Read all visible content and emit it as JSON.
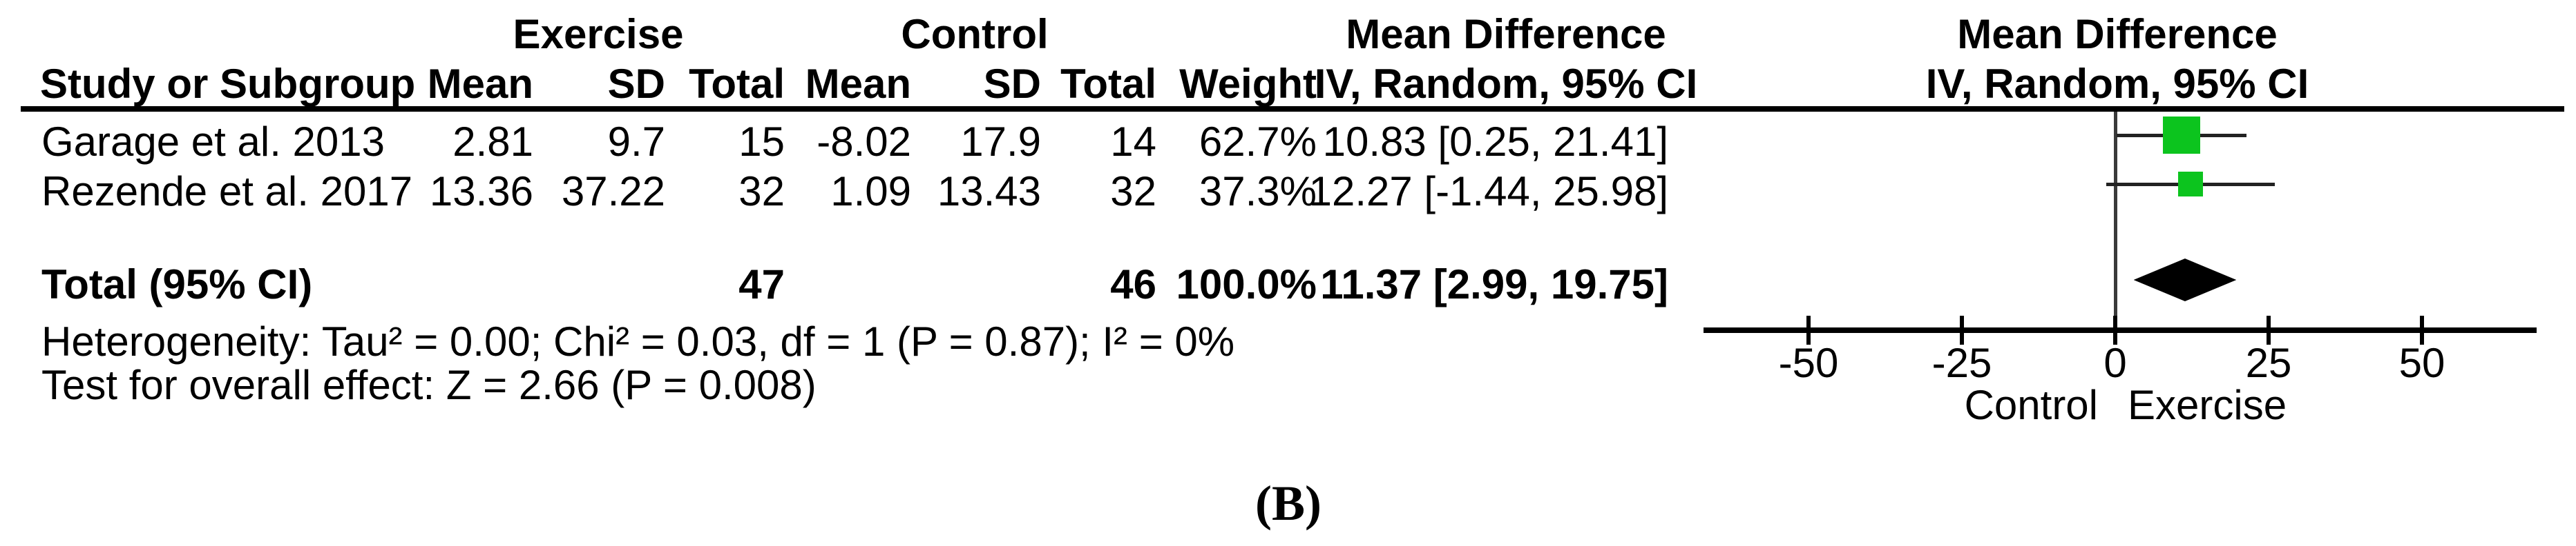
{
  "figure_label": "(B)",
  "table": {
    "group_headers": {
      "exercise": "Exercise",
      "control": "Control",
      "mean_difference_left": "Mean Difference",
      "mean_difference_right": "Mean Difference"
    },
    "column_headers": {
      "study": "Study or Subgroup",
      "mean_exercise": "Mean",
      "sd_exercise": "SD",
      "total_exercise": "Total",
      "mean_control": "Mean",
      "sd_control": "SD",
      "total_control": "Total",
      "weight": "Weight",
      "iv_left": "IV, Random, 95% CI",
      "iv_right": "IV, Random, 95% CI"
    },
    "rows": [
      {
        "study": "Garage et al. 2013",
        "mean_e": "2.81",
        "sd_e": "9.7",
        "total_e": "15",
        "mean_c": "-8.02",
        "sd_c": "17.9",
        "total_c": "14",
        "weight": "62.7%",
        "ci": "10.83 [0.25, 21.41]"
      },
      {
        "study": "Rezende et al. 2017",
        "mean_e": "13.36",
        "sd_e": "37.22",
        "total_e": "32",
        "mean_c": "1.09",
        "sd_c": "13.43",
        "total_c": "32",
        "weight": "37.3%",
        "ci": "12.27 [-1.44, 25.98]"
      }
    ],
    "total_row": {
      "label": "Total (95% CI)",
      "total_e": "47",
      "total_c": "46",
      "weight": "100.0%",
      "ci": "11.37 [2.99, 19.75]"
    },
    "heterogeneity": "Heterogeneity: Tau² = 0.00; Chi² = 0.03, df = 1 (P = 0.87); I² = 0%",
    "overall_effect": "Test for overall effect: Z = 2.66 (P = 0.008)"
  },
  "chart_data": {
    "type": "forest",
    "title": "Mean Difference",
    "effect_measure": "IV, Random, 95% CI",
    "studies": [
      {
        "label": "Garage et al. 2013",
        "md": 10.83,
        "ci_low": 0.25,
        "ci_high": 21.41,
        "weight_pct": 62.7
      },
      {
        "label": "Rezende et al. 2017",
        "md": 12.27,
        "ci_low": -1.44,
        "ci_high": 25.98,
        "weight_pct": 37.3
      }
    ],
    "total": {
      "md": 11.37,
      "ci_low": 2.99,
      "ci_high": 19.75
    },
    "axis": {
      "ticks": [
        -50,
        -25,
        0,
        25,
        50
      ],
      "xlim": [
        -67,
        69
      ],
      "left_label": "Control",
      "right_label": "Exercise"
    },
    "marker_color": "#0cc41e",
    "diamond_color": "#000000",
    "grid": false,
    "legend": false
  }
}
